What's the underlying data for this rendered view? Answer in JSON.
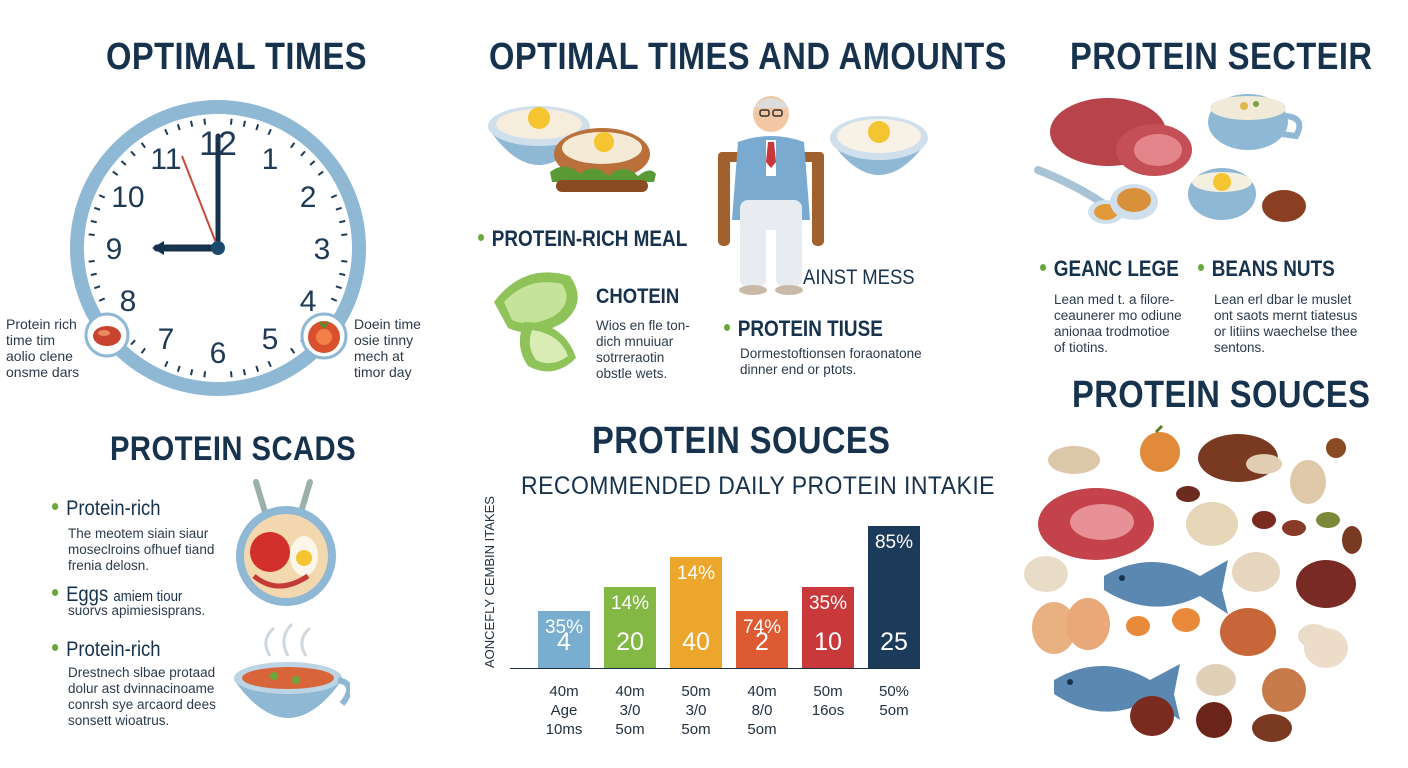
{
  "sections": {
    "optimal_times": {
      "title": "OPTIMAL TIMES",
      "clock_numbers": [
        "12",
        "1",
        "2",
        "3",
        "4",
        "5",
        "6",
        "7",
        "8",
        "9",
        "10",
        "11"
      ],
      "left_note": "Protein rich\ntime tim\naolio clene\nonsme dars",
      "right_note": "Doein time\nosie tinny\nmech at\ntimor day"
    },
    "optimal_times_amounts": {
      "title": "OPTIMAL TIMES AND AMOUNTS",
      "meal_label": "PROTEIN-RICH MEAL",
      "chotein_title": "CHOTEIN",
      "chotein_text": "Wios en fle ton-\ndich mnuiuar\nsotrreraotin\nobstle wets.",
      "ainst_mess": "AINST MESS",
      "tiuse_title": "PROTEIN TIUSE",
      "tiuse_text": "Dormestoftionsen foraonatone\ndinner end or ptots."
    },
    "protein_secteir": {
      "title": "PROTEIN SECTEIR",
      "col1_title": "GEANC LEGE",
      "col1_text": "Lean med t. a filore-\nceaunerer mo odiune\nanionaa trodmotioe\nof tiotins.",
      "col2_title": "BEANS NUTS",
      "col2_text": "Lean erl dbar le muslet\nont saots mernt tiatesus\nor litiins waechelse thee\nsentons."
    },
    "protein_scads": {
      "title": "PROTEIN SCADS",
      "items": [
        {
          "title": "Protein-rich",
          "text": "The meotem siain siaur\nmoseclroins ofhuef tiand\nfrenia delosn."
        },
        {
          "title": "Eggs",
          "inline": "amiem tiour",
          "text": "suorvs apimiesisprans."
        },
        {
          "title": "Protein-rich",
          "text": "Drestnech slbae protaad\ndolur ast dvinnacinoame\nconrsh sye arcaord dees\nsonsett wioatrus."
        }
      ]
    },
    "protein_souces_center": {
      "title": "PROTEIN SOUCES",
      "subtitle": "RECOMMENDED DAILY PROTEIN INTAKIE"
    },
    "protein_souces_right": {
      "title": "PROTEIN SOUCES"
    }
  },
  "chart_data": {
    "type": "bar",
    "title": "RECOMMENDED DAILY PROTEIN INTAKIE",
    "ylabel": "AONCEFLY CEMBIN ITAKES",
    "xlabel": "",
    "ylim": [
      0,
      100
    ],
    "grid": false,
    "categories": [
      "40m\nAge\n10ms",
      "40m\n3/0\n5om",
      "50m\n3/0\n5om",
      "40m\n8/0\n5om",
      "50m\n16os",
      "50%\n5om"
    ],
    "values": [
      40,
      57,
      78,
      40,
      57,
      100
    ],
    "top_labels": [
      "35%",
      "14%",
      "14%",
      "74%",
      "35%",
      "85%"
    ],
    "bottom_labels": [
      "4",
      "20",
      "40",
      "2",
      "10",
      "25"
    ],
    "colors": [
      "#7aaed0",
      "#84b844",
      "#eda62c",
      "#dd5a32",
      "#c9383a",
      "#1c3a5a"
    ]
  }
}
